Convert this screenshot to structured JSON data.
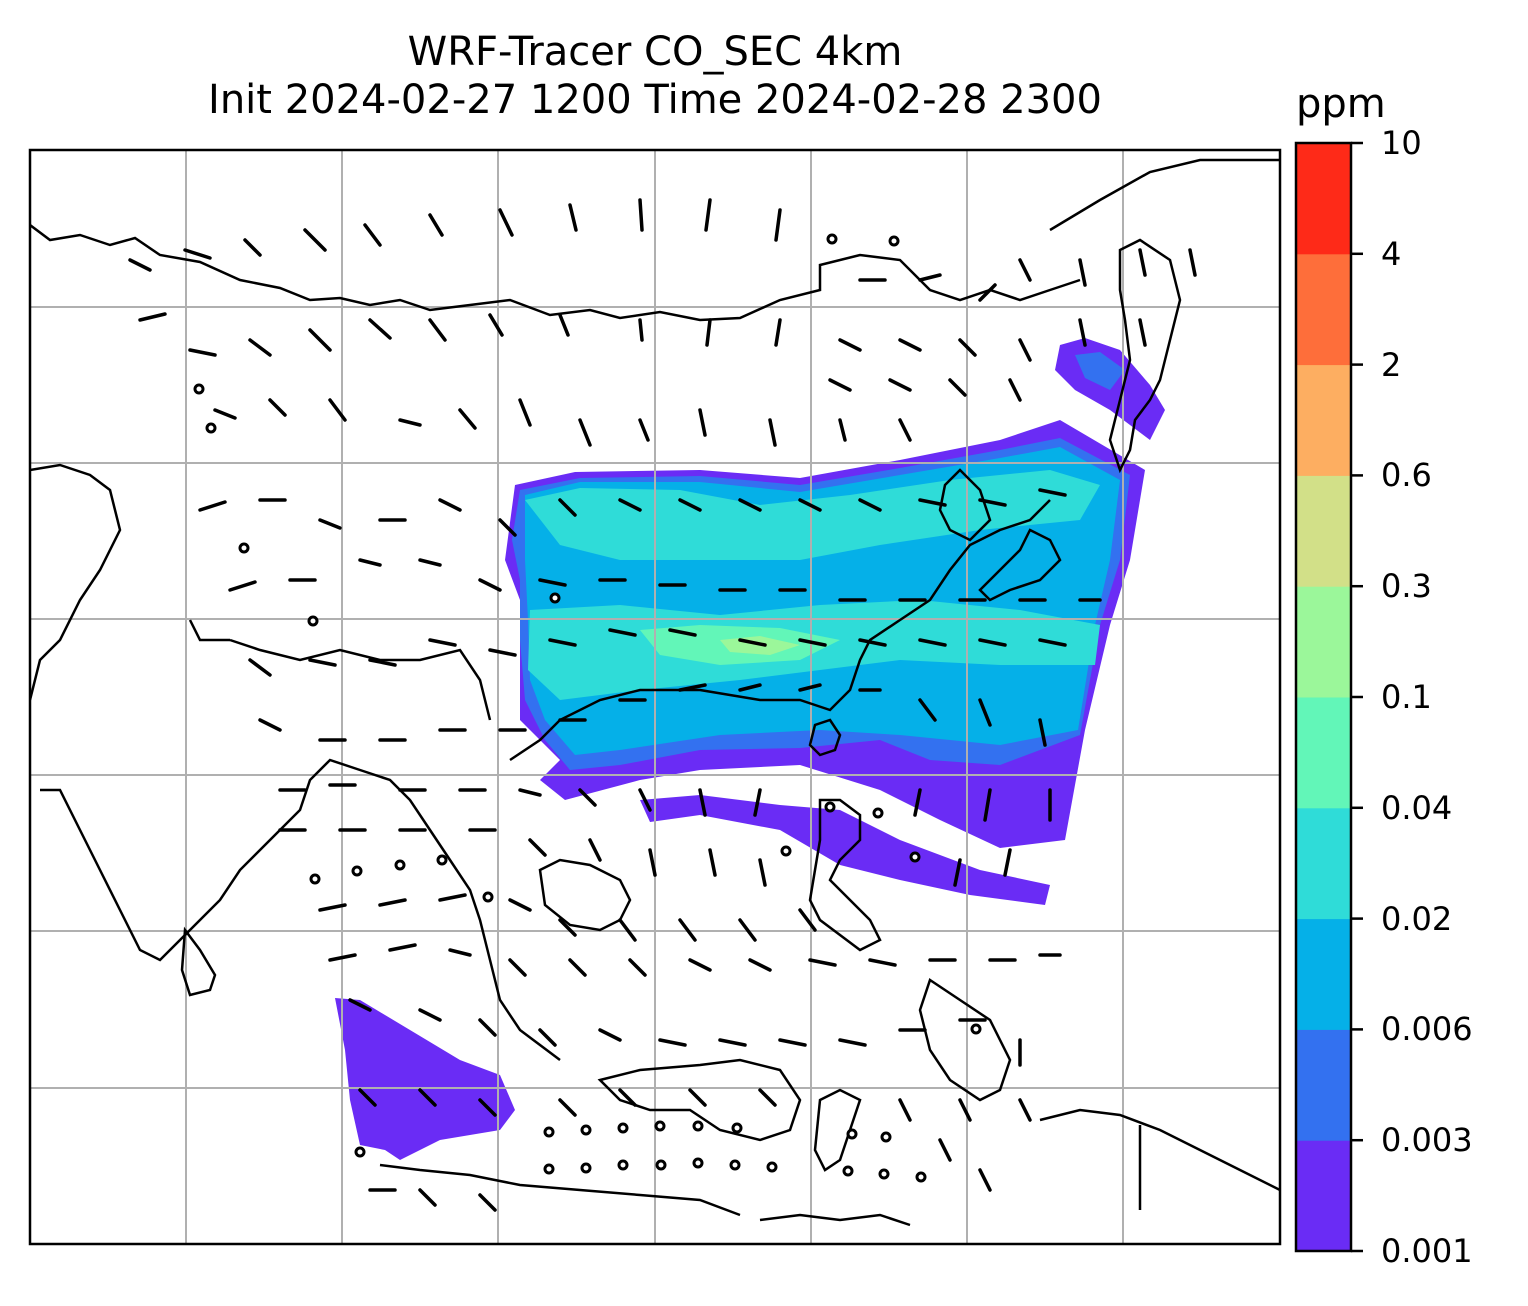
{
  "title_line1": "WRF-Tracer CO_SEC 4km",
  "title_line2": "Init 2024-02-27 1200 Time 2024-02-28 2300",
  "colorbar": {
    "unit": "ppm",
    "levels": [
      "0.001",
      "0.003",
      "0.006",
      "0.02",
      "0.04",
      "0.1",
      "0.3",
      "0.6",
      "2",
      "4",
      "10"
    ],
    "colors": [
      "#6a2cf5",
      "#3371f0",
      "#05b0e8",
      "#2fdcd8",
      "#62f6b8",
      "#9bf79a",
      "#d2e088",
      "#fdae61",
      "#fe6e3a",
      "#fe2a18"
    ]
  },
  "field": {
    "variable": "CO_SEC",
    "resolution": "4km",
    "overlays": [
      "coastlines",
      "country-borders",
      "lat-lon-gridlines",
      "wind-barbs",
      "calm-wind-circles"
    ]
  }
}
